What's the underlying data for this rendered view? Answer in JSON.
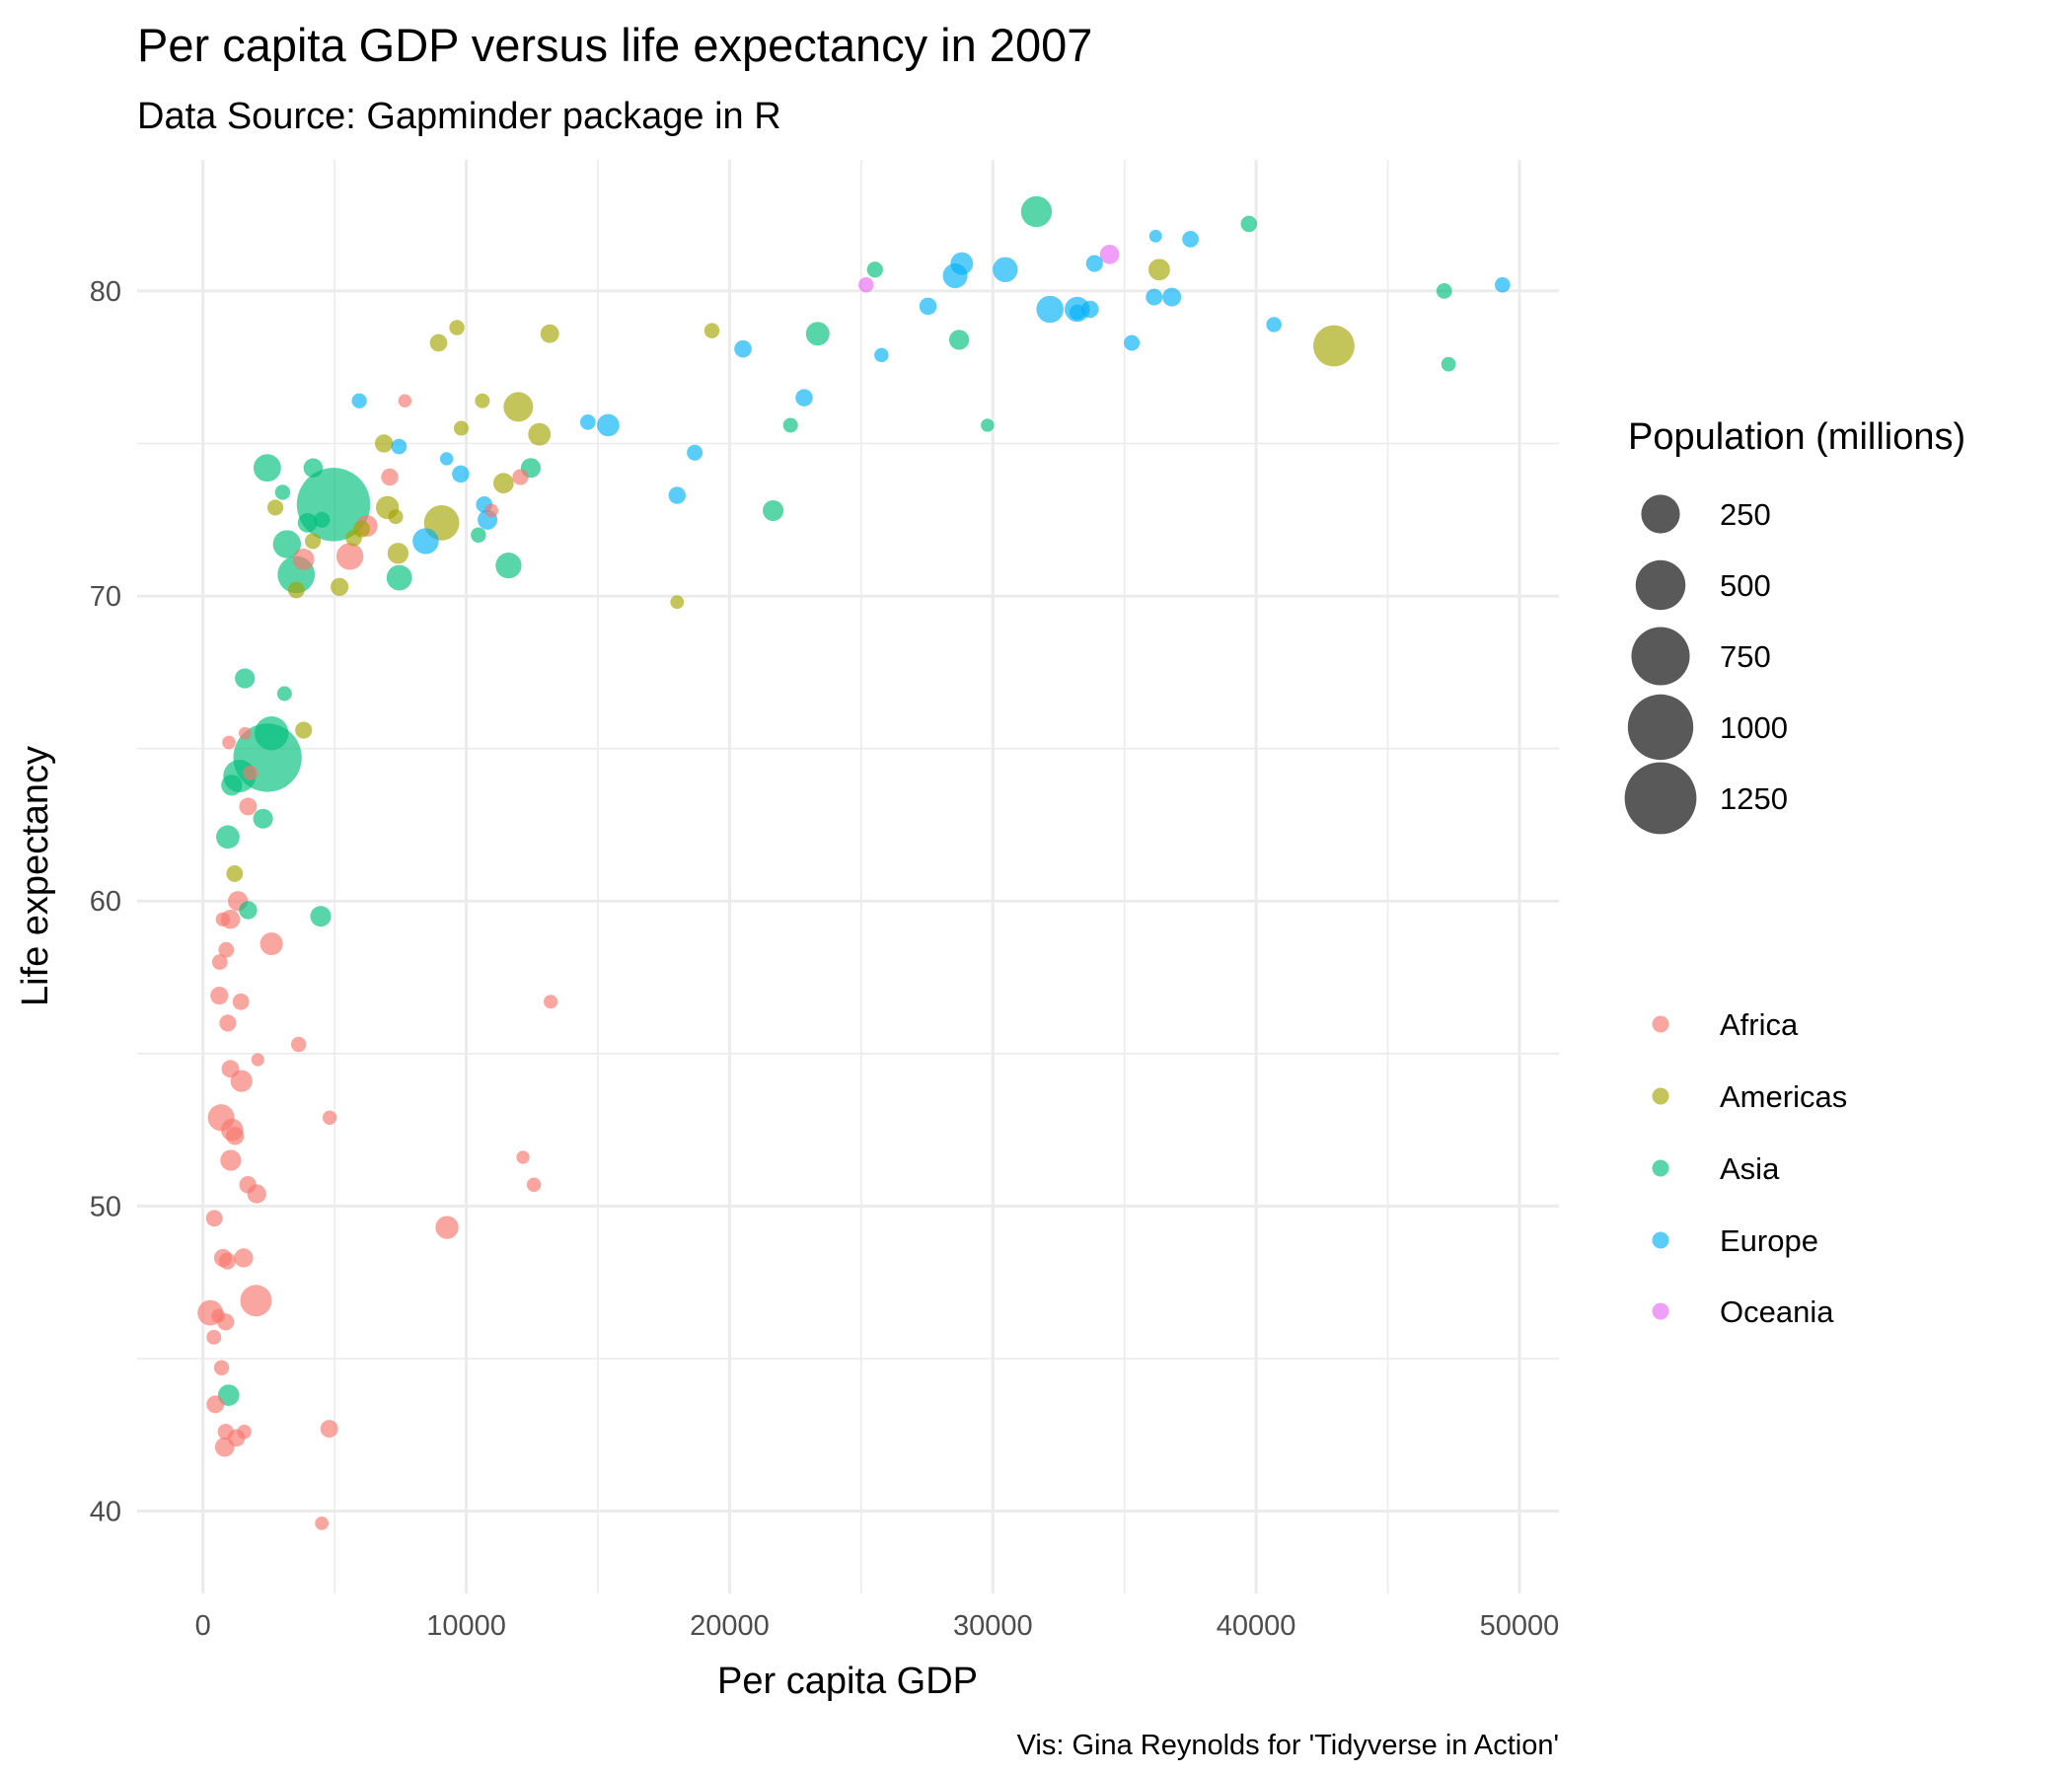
{
  "chart_data": {
    "type": "scatter",
    "title": "Per capita GDP versus life expectancy in 2007",
    "subtitle": "Data Source: Gapminder package in R",
    "xlabel": "Per capita GDP",
    "ylabel": "Life expectancy",
    "caption": "Vis: Gina Reynolds for 'Tidyverse in Action'",
    "xlim": [
      -2500,
      51500
    ],
    "ylim": [
      37.3,
      84.3
    ],
    "x_ticks": [
      0,
      10000,
      20000,
      30000,
      40000,
      50000
    ],
    "x_tick_labels": [
      "0",
      "10000",
      "20000",
      "30000",
      "40000",
      "50000"
    ],
    "y_ticks": [
      40,
      50,
      60,
      70,
      80
    ],
    "y_tick_labels": [
      "40",
      "50",
      "60",
      "70",
      "80"
    ],
    "grid": true,
    "size_legend": {
      "title": "Population (millions)",
      "values": [
        250,
        500,
        750,
        1000,
        1250
      ],
      "labels": [
        "250",
        "500",
        "750",
        "1000",
        "1250"
      ],
      "color": "#000000"
    },
    "color_legend": {
      "entries": [
        "Africa",
        "Americas",
        "Asia",
        "Europe",
        "Oceania"
      ]
    },
    "colors": {
      "Africa": "#F8766D",
      "Americas": "#A3A500",
      "Asia": "#00BF7D",
      "Europe": "#00B0F6",
      "Oceania": "#E76BF3"
    },
    "series": [
      {
        "name": "Africa",
        "points": [
          [
            6223,
            72.3,
            33
          ],
          [
            4797,
            42.7,
            12
          ],
          [
            1441,
            56.7,
            8
          ],
          [
            12570,
            50.7,
            2
          ],
          [
            1217,
            52.3,
            14
          ],
          [
            430,
            49.6,
            8
          ],
          [
            2042,
            50.4,
            18
          ],
          [
            706,
            44.7,
            4
          ],
          [
            1704,
            50.7,
            10
          ],
          [
            986,
            65.2,
            1
          ],
          [
            278,
            46.5,
            65
          ],
          [
            3633,
            55.3,
            4
          ],
          [
            1545,
            48.3,
            18
          ],
          [
            2082,
            54.8,
            0.5
          ],
          [
            5581,
            71.3,
            80
          ],
          [
            12154,
            51.6,
            0.6
          ],
          [
            641,
            58.0,
            5
          ],
          [
            691,
            52.9,
            77
          ],
          [
            13206,
            56.7,
            1.5
          ],
          [
            753,
            59.4,
            2
          ],
          [
            1328,
            60.0,
            23
          ],
          [
            943,
            56.0,
            9
          ],
          [
            579,
            46.4,
            1.5
          ],
          [
            1463,
            54.1,
            35
          ],
          [
            1569,
            42.6,
            2
          ],
          [
            415,
            45.7,
            3
          ],
          [
            12057,
            73.9,
            6
          ],
          [
            1045,
            59.4,
            19
          ],
          [
            759,
            48.3,
            13
          ],
          [
            1042,
            54.5,
            12
          ],
          [
            1803,
            64.2,
            3
          ],
          [
            10957,
            72.8,
            1.3
          ],
          [
            3820,
            71.2,
            33
          ],
          [
            824,
            42.1,
            20
          ],
          [
            4811,
            52.9,
            2
          ],
          [
            620,
            56.9,
            13
          ],
          [
            2014,
            46.9,
            135
          ],
          [
            7670,
            76.4,
            0.8
          ],
          [
            863,
            46.2,
            9
          ],
          [
            1598,
            65.5,
            0.2
          ],
          [
            1712,
            63.1,
            12
          ],
          [
            862,
            42.6,
            6
          ],
          [
            926,
            48.2,
            9
          ],
          [
            9270,
            49.3,
            44
          ],
          [
            2602,
            58.6,
            42
          ],
          [
            4513,
            39.6,
            1.1
          ],
          [
            1107,
            52.5,
            38
          ],
          [
            883,
            58.4,
            5
          ],
          [
            7093,
            73.9,
            10
          ],
          [
            1056,
            51.5,
            29
          ],
          [
            1271,
            42.4,
            11
          ],
          [
            470,
            43.5,
            12
          ]
        ]
      },
      {
        "name": "Americas",
        "points": [
          [
            12779,
            75.3,
            40
          ],
          [
            3822,
            65.6,
            9
          ],
          [
            9066,
            72.4,
            190
          ],
          [
            36319,
            80.7,
            33
          ],
          [
            13172,
            78.6,
            16
          ],
          [
            7007,
            72.9,
            44
          ],
          [
            9645,
            78.8,
            4
          ],
          [
            8948,
            78.3,
            11
          ],
          [
            6025,
            72.2,
            9
          ],
          [
            6873,
            75.0,
            14
          ],
          [
            5728,
            71.9,
            7
          ],
          [
            5186,
            70.3,
            13
          ],
          [
            1202,
            60.9,
            8
          ],
          [
            3548,
            70.2,
            8
          ],
          [
            7321,
            72.6,
            3
          ],
          [
            11978,
            76.2,
            109
          ],
          [
            2749,
            72.9,
            6
          ],
          [
            9809,
            75.5,
            3
          ],
          [
            4173,
            71.8,
            6
          ],
          [
            7409,
            71.4,
            29
          ],
          [
            19329,
            78.7,
            4
          ],
          [
            18009,
            69.8,
            1
          ],
          [
            42952,
            78.2,
            301
          ],
          [
            10611,
            76.4,
            3
          ],
          [
            11416,
            73.7,
            26
          ]
        ]
      },
      {
        "name": "Asia",
        "points": [
          [
            975,
            43.8,
            32
          ],
          [
            29796,
            75.6,
            0.7
          ],
          [
            1391,
            64.1,
            150
          ],
          [
            1714,
            59.7,
            14
          ],
          [
            4959,
            73.0,
            1319
          ],
          [
            39725,
            82.2,
            7
          ],
          [
            2452,
            64.7,
            1110
          ],
          [
            3541,
            70.7,
            224
          ],
          [
            11606,
            71.0,
            69
          ],
          [
            4471,
            59.5,
            28
          ],
          [
            25523,
            80.7,
            6
          ],
          [
            31656,
            82.6,
            127
          ],
          [
            4519,
            72.5,
            6
          ],
          [
            1593,
            67.3,
            23
          ],
          [
            23348,
            78.6,
            49
          ],
          [
            47307,
            77.6,
            2.5
          ],
          [
            10461,
            72.0,
            4
          ],
          [
            12452,
            74.2,
            22
          ],
          [
            3096,
            66.8,
            3
          ],
          [
            944,
            62.1,
            47
          ],
          [
            1091,
            63.8,
            29
          ],
          [
            22316,
            75.6,
            3
          ],
          [
            2606,
            65.5,
            169
          ],
          [
            3190,
            71.7,
            91
          ],
          [
            21655,
            72.8,
            28
          ],
          [
            47143,
            80.0,
            5
          ],
          [
            3970,
            72.4,
            20
          ],
          [
            4185,
            74.2,
            19
          ],
          [
            28718,
            78.4,
            23
          ],
          [
            7458,
            70.6,
            65
          ],
          [
            2442,
            74.2,
            85
          ],
          [
            3025,
            73.4,
            4
          ],
          [
            2281,
            62.7,
            22
          ]
        ]
      },
      {
        "name": "Europe",
        "points": [
          [
            5937,
            76.4,
            3.6
          ],
          [
            36126,
            79.8,
            8.2
          ],
          [
            33693,
            79.4,
            10.4
          ],
          [
            7446,
            74.9,
            4.6
          ],
          [
            10681,
            73.0,
            7.3
          ],
          [
            14619,
            75.7,
            4.5
          ],
          [
            22833,
            76.5,
            10.2
          ],
          [
            35278,
            78.3,
            5.5
          ],
          [
            33207,
            79.3,
            5.2
          ],
          [
            30470,
            80.7,
            61
          ],
          [
            32170,
            79.4,
            82
          ],
          [
            27538,
            79.5,
            10.7
          ],
          [
            18009,
            73.3,
            10
          ],
          [
            36181,
            81.8,
            0.3
          ],
          [
            40676,
            78.9,
            4.1
          ],
          [
            28570,
            80.5,
            58
          ],
          [
            9254,
            74.5,
            0.7
          ],
          [
            36798,
            79.8,
            16.6
          ],
          [
            49357,
            80.2,
            4.6
          ],
          [
            15390,
            75.6,
            38.5
          ],
          [
            20510,
            78.1,
            10.6
          ],
          [
            10808,
            72.5,
            22.3
          ],
          [
            9787,
            74.0,
            10.2
          ],
          [
            18678,
            74.7,
            5.4
          ],
          [
            25768,
            77.9,
            2
          ],
          [
            28821,
            80.9,
            40.4
          ],
          [
            33860,
            80.9,
            9
          ],
          [
            37506,
            81.7,
            7.6
          ],
          [
            8458,
            71.8,
            71
          ],
          [
            33203,
            79.4,
            60.8
          ]
        ]
      },
      {
        "name": "Oceania",
        "points": [
          [
            34435,
            81.2,
            20
          ],
          [
            25185,
            80.2,
            4
          ]
        ]
      }
    ]
  }
}
